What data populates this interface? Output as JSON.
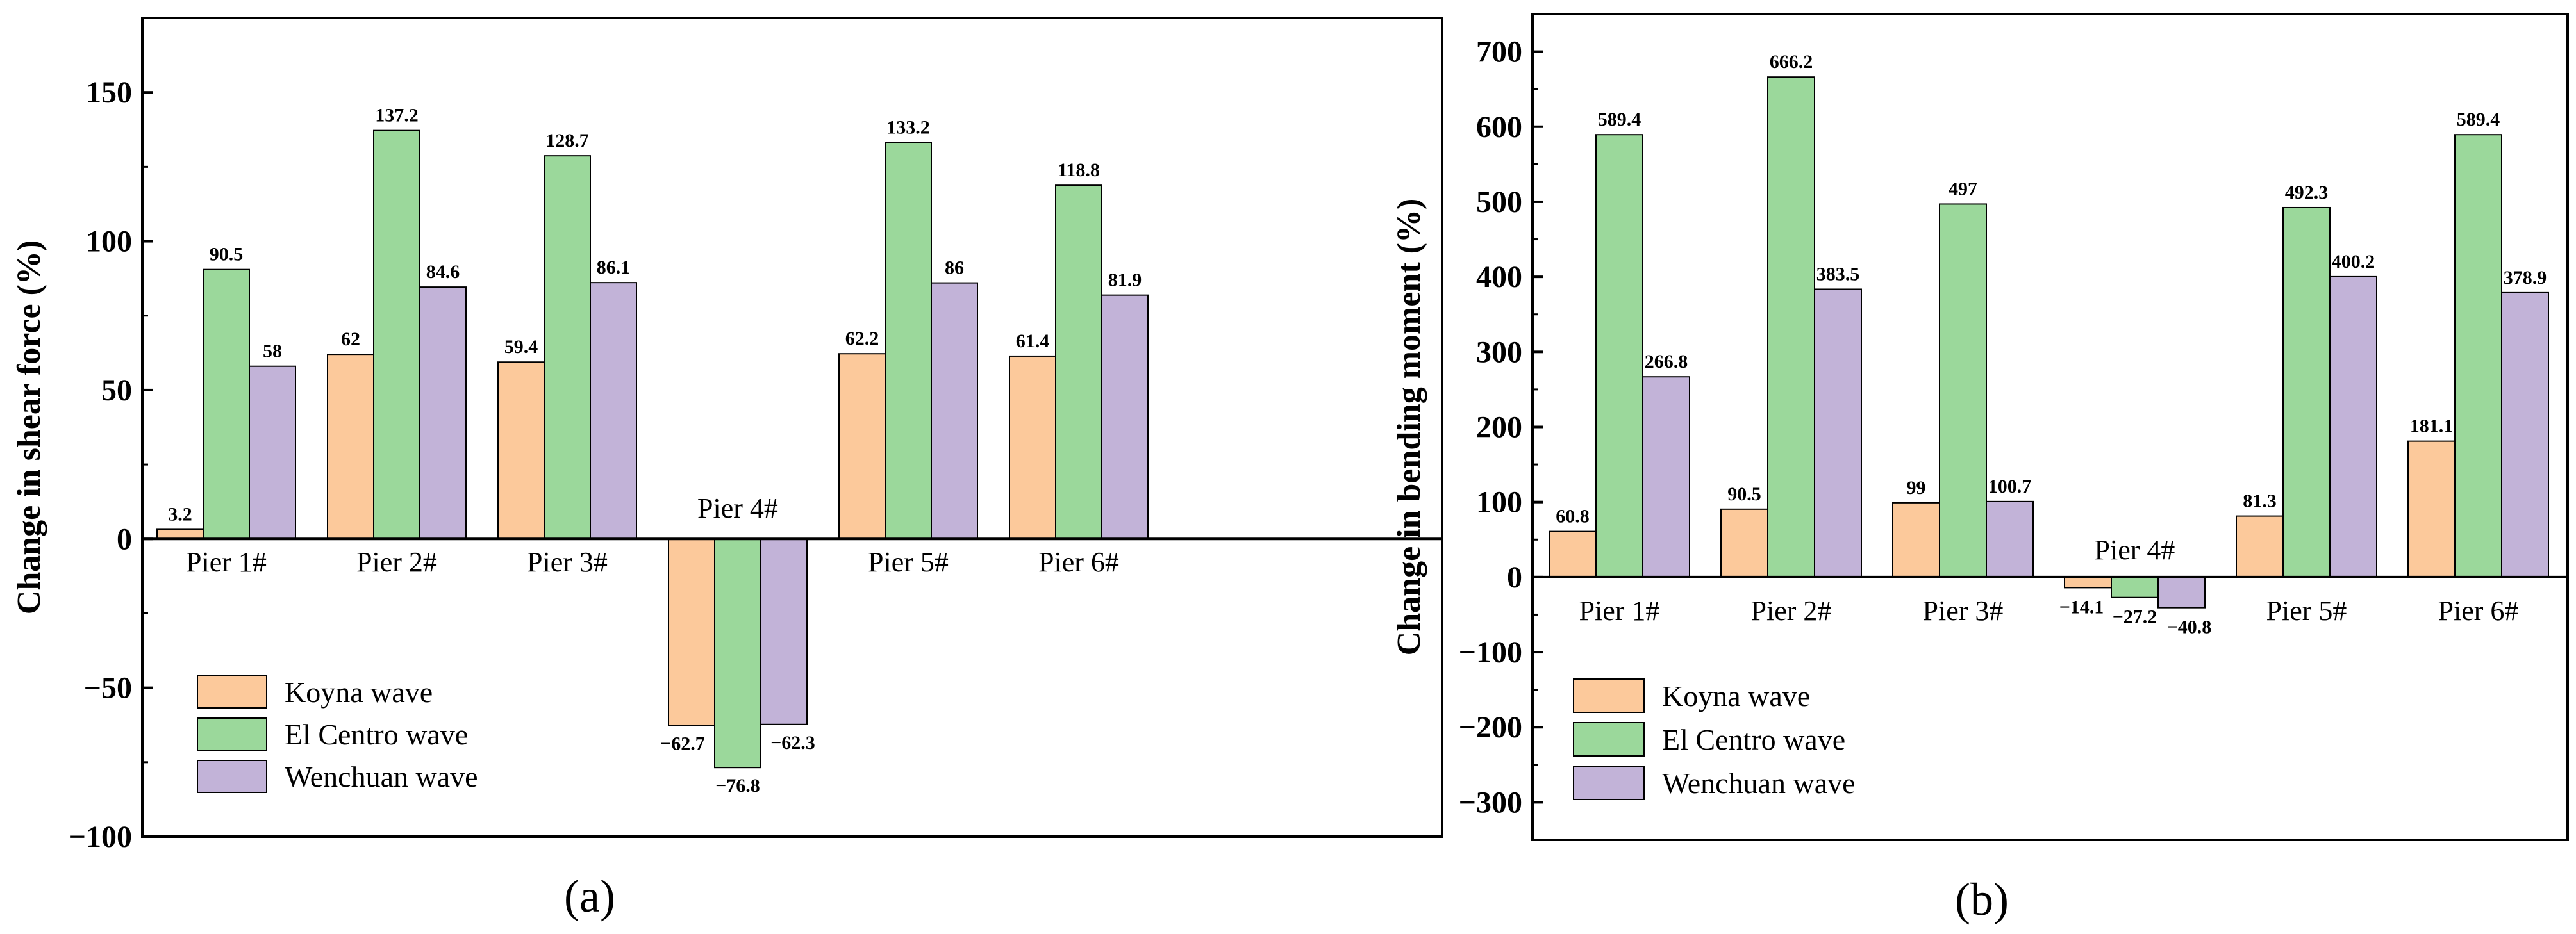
{
  "chart_data": [
    {
      "type": "bar",
      "panel_label": "(a)",
      "ylabel": "Change in shear force (%)",
      "xlabel": "",
      "ylim": [
        -100,
        175
      ],
      "yticks": [
        -100,
        -50,
        0,
        50,
        100,
        150
      ],
      "ytick_labels": [
        "−100",
        "−50",
        "0",
        "50",
        "100",
        "150"
      ],
      "categories": [
        "Pier 1#",
        "Pier 2#",
        "Pier 3#",
        "Pier 4#",
        "Pier 5#",
        "Pier 6#"
      ],
      "series": [
        {
          "name": "Koyna wave",
          "values": [
            3.2,
            62,
            59.4,
            -62.7,
            62.2,
            61.4
          ],
          "labels": [
            "3.2",
            "62",
            "59.4",
            "−62.7",
            "62.2",
            "61.4"
          ]
        },
        {
          "name": "El Centro wave",
          "values": [
            90.5,
            137.2,
            128.7,
            -76.8,
            133.2,
            118.8
          ],
          "labels": [
            "90.5",
            "137.2",
            "128.7",
            "−76.8",
            "133.2",
            "118.8"
          ]
        },
        {
          "name": "Wenchuan wave",
          "values": [
            58,
            84.6,
            86.1,
            -62.3,
            86,
            81.9
          ],
          "labels": [
            "58",
            "84.6",
            "86.1",
            "−62.3",
            "86",
            "81.9"
          ]
        }
      ],
      "legend": "bottom-left",
      "grid": false
    },
    {
      "type": "bar",
      "panel_label": "(b)",
      "ylabel": "Change in bending moment (%)",
      "xlabel": "",
      "ylim": [
        -350,
        750
      ],
      "yticks": [
        -300,
        -200,
        -100,
        0,
        100,
        200,
        300,
        400,
        500,
        600,
        700
      ],
      "ytick_labels": [
        "−300",
        "−200",
        "−100",
        "0",
        "100",
        "200",
        "300",
        "400",
        "500",
        "600",
        "700"
      ],
      "categories": [
        "Pier 1#",
        "Pier 2#",
        "Pier 3#",
        "Pier 4#",
        "Pier 5#",
        "Pier 6#"
      ],
      "series": [
        {
          "name": "Koyna wave",
          "values": [
            60.8,
            90.5,
            99,
            -14.1,
            81.3,
            181.1
          ],
          "labels": [
            "60.8",
            "90.5",
            "99",
            "−14.1",
            "81.3",
            "181.1"
          ]
        },
        {
          "name": "El Centro wave",
          "values": [
            589.4,
            666.2,
            497,
            -27.2,
            492.3,
            589.4
          ],
          "labels": [
            "589.4",
            "666.2",
            "497",
            "−27.2",
            "492.3",
            "589.4"
          ]
        },
        {
          "name": "Wenchuan wave",
          "values": [
            266.8,
            383.5,
            100.7,
            -40.8,
            400.2,
            378.9
          ],
          "labels": [
            "266.8",
            "383.5",
            "100.7",
            "−40.8",
            "400.2",
            "378.9"
          ]
        }
      ],
      "legend": "bottom-left",
      "grid": false
    }
  ],
  "colors": {
    "Koyna wave": "#FCC99B",
    "El Centro wave": "#9BD89B",
    "Wenchuan wave": "#C2B3D8"
  }
}
